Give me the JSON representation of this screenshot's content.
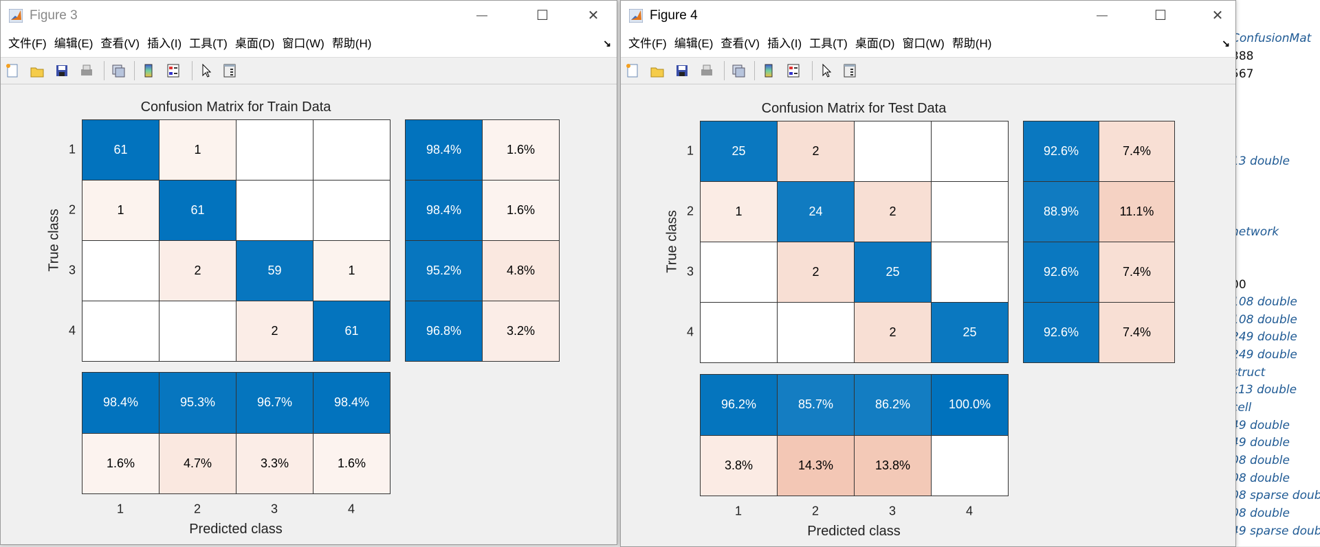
{
  "workspace": {
    "lines": [
      {
        "text": "ConfusionMat",
        "kind": "var"
      },
      {
        "text": "388",
        "kind": "plain"
      },
      {
        "text": "567",
        "kind": "plain"
      },
      {
        "text": "13 double",
        "kind": "var"
      },
      {
        "text": "network",
        "kind": "var"
      },
      {
        "text": "00",
        "kind": "plain"
      },
      {
        "text": "108 double",
        "kind": "var"
      },
      {
        "text": "108 double",
        "kind": "var"
      },
      {
        "text": "249 double",
        "kind": "var"
      },
      {
        "text": "249 double",
        "kind": "var"
      },
      {
        "text": "struct",
        "kind": "var"
      },
      {
        "text": "x13 double",
        "kind": "var"
      },
      {
        "text": "cell",
        "kind": "var"
      },
      {
        "text": "49 double",
        "kind": "var"
      },
      {
        "text": "49 double",
        "kind": "var"
      },
      {
        "text": "08 double",
        "kind": "var"
      },
      {
        "text": "08 double",
        "kind": "var"
      },
      {
        "text": "08 sparse doub",
        "kind": "var"
      },
      {
        "text": "08 double",
        "kind": "var"
      },
      {
        "text": "49 sparse doub",
        "kind": "var"
      }
    ]
  },
  "menu": [
    "文件(F)",
    "编辑(E)",
    "查看(V)",
    "插入(I)",
    "工具(T)",
    "桌面(D)",
    "窗口(W)",
    "帮助(H)"
  ],
  "toolbar_icons": [
    "new-figure-icon",
    "open-file-icon",
    "save-icon",
    "print-icon",
    "link-icon",
    "colorbar-icon",
    "legend-icon",
    "pointer-icon",
    "property-inspector-icon"
  ],
  "windows": [
    {
      "title": "Figure 3",
      "active": false
    },
    {
      "title": "Figure 4",
      "active": true
    }
  ],
  "colors": {
    "blue": "#0072BD",
    "pink": "#D95319"
  },
  "chart_data": [
    {
      "type": "heatmap",
      "title": "Confusion Matrix for Train Data",
      "xlabel": "Predicted class",
      "ylabel": "True class",
      "classes": [
        "1",
        "2",
        "3",
        "4"
      ],
      "matrix": [
        [
          61,
          1,
          null,
          null
        ],
        [
          1,
          61,
          null,
          null
        ],
        [
          null,
          2,
          59,
          1
        ],
        [
          null,
          null,
          2,
          61
        ]
      ],
      "row_summary": [
        [
          "98.4%",
          "1.6%"
        ],
        [
          "98.4%",
          "1.6%"
        ],
        [
          "95.2%",
          "4.8%"
        ],
        [
          "96.8%",
          "3.2%"
        ]
      ],
      "row_summary_values": [
        [
          98.4,
          1.6
        ],
        [
          98.4,
          1.6
        ],
        [
          95.2,
          4.8
        ],
        [
          96.8,
          3.2
        ]
      ],
      "col_summary": [
        [
          "98.4%",
          "95.3%",
          "96.7%",
          "98.4%"
        ],
        [
          "1.6%",
          "4.7%",
          "3.3%",
          "1.6%"
        ]
      ],
      "col_summary_values": [
        [
          98.4,
          95.3,
          96.7,
          98.4
        ],
        [
          1.6,
          4.7,
          3.3,
          1.6
        ]
      ]
    },
    {
      "type": "heatmap",
      "title": "Confusion Matrix for Test Data",
      "xlabel": "Predicted class",
      "ylabel": "True class",
      "classes": [
        "1",
        "2",
        "3",
        "4"
      ],
      "matrix": [
        [
          25,
          2,
          null,
          null
        ],
        [
          1,
          24,
          2,
          null
        ],
        [
          null,
          2,
          25,
          null
        ],
        [
          null,
          null,
          2,
          25
        ]
      ],
      "row_summary": [
        [
          "92.6%",
          "7.4%"
        ],
        [
          "88.9%",
          "11.1%"
        ],
        [
          "92.6%",
          "7.4%"
        ],
        [
          "92.6%",
          "7.4%"
        ]
      ],
      "row_summary_values": [
        [
          92.6,
          7.4
        ],
        [
          88.9,
          11.1
        ],
        [
          92.6,
          7.4
        ],
        [
          92.6,
          7.4
        ]
      ],
      "col_summary": [
        [
          "96.2%",
          "85.7%",
          "86.2%",
          "100.0%"
        ],
        [
          "3.8%",
          "14.3%",
          "13.8%",
          null
        ]
      ],
      "col_summary_values": [
        [
          96.2,
          85.7,
          86.2,
          100.0
        ],
        [
          3.8,
          14.3,
          13.8,
          0
        ]
      ]
    }
  ]
}
